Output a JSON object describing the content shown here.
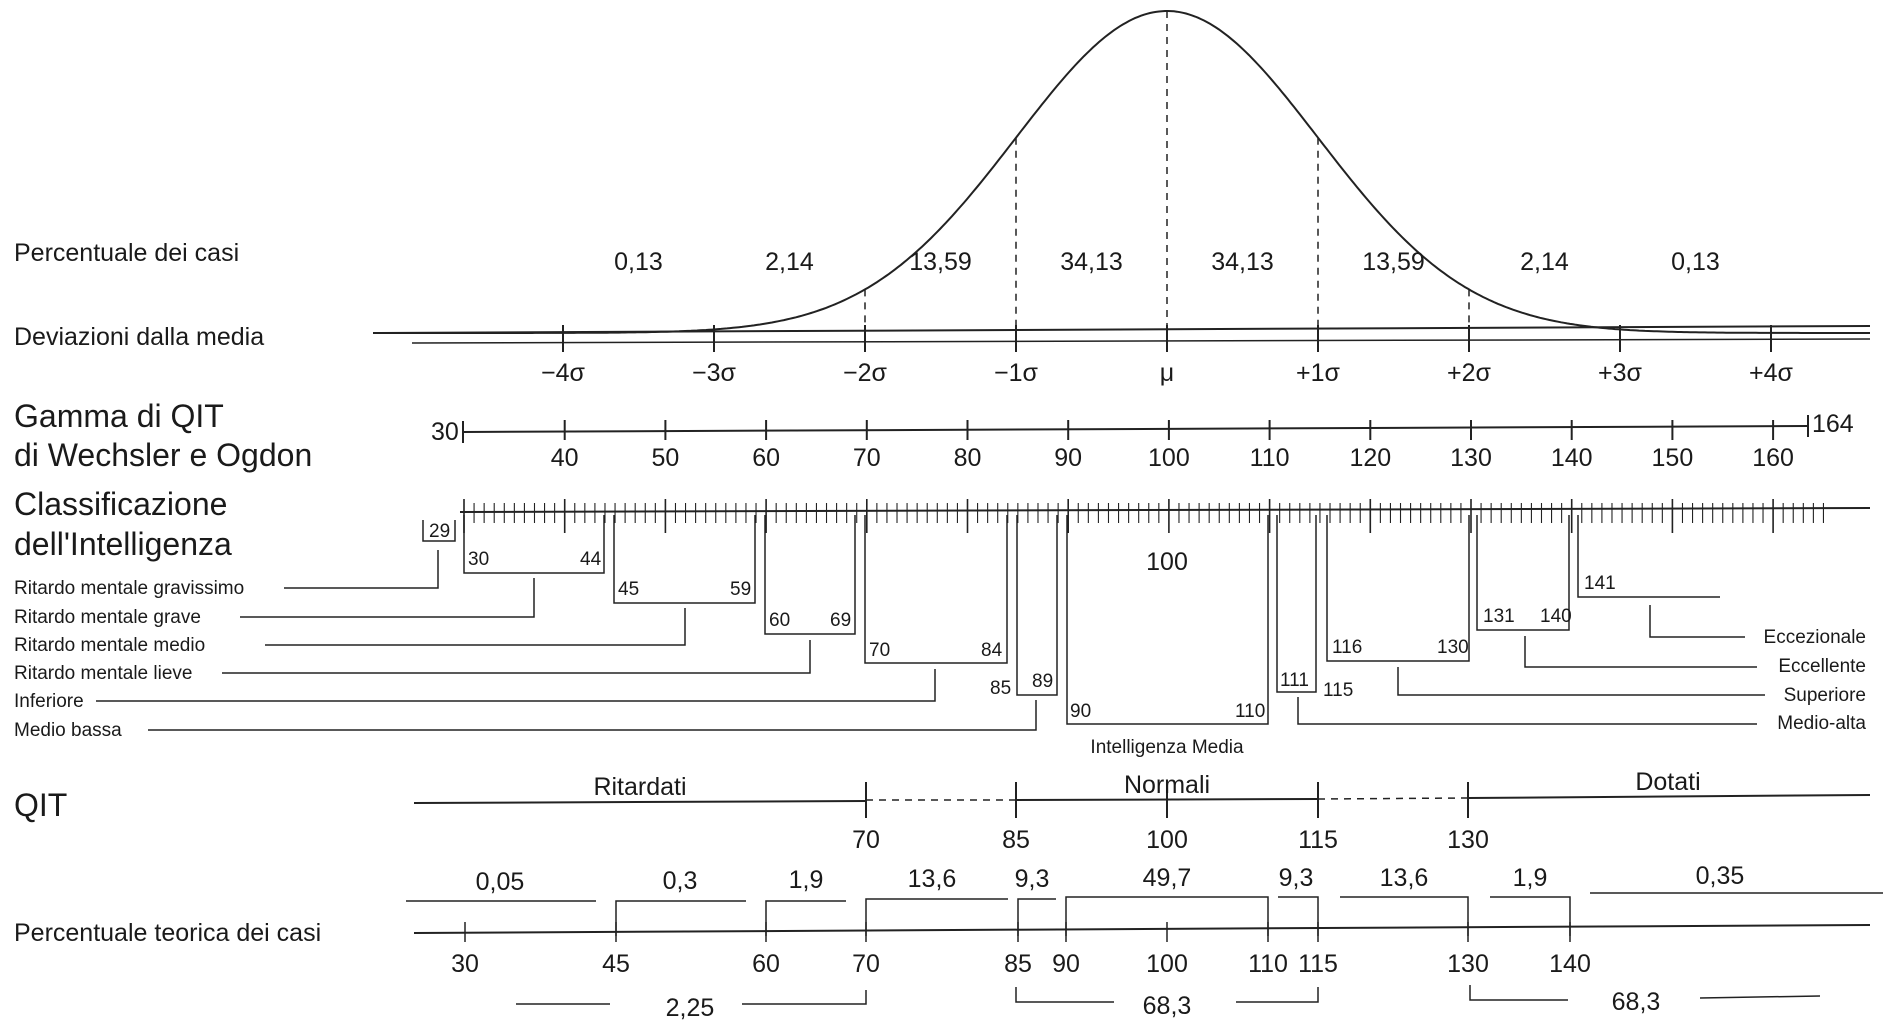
{
  "row_labels": {
    "percentuale_casi": "Percentuale dei casi",
    "deviazioni": "Deviazioni dalla media",
    "gamma_line1": "Gamma di QIT",
    "gamma_line2": "di Wechsler e Ogdon",
    "classificazione_line1": "Classificazione",
    "classificazione_line2": "dell'Intelligenza",
    "qit": "QIT",
    "percentuale_teorica": "Percentuale teorica dei casi"
  },
  "curve_percentages": [
    "0,13",
    "2,14",
    "13,59",
    "34,13",
    "34,13",
    "13,59",
    "2,14",
    "0,13"
  ],
  "sigma_labels": [
    "−4σ",
    "−3σ",
    "−2σ",
    "−1σ",
    "μ",
    "+1σ",
    "+2σ",
    "+3σ",
    "+4σ"
  ],
  "iq_scale": {
    "min_label": "30",
    "max_label": "164",
    "ticks": [
      "40",
      "50",
      "60",
      "70",
      "80",
      "90",
      "100",
      "110",
      "120",
      "130",
      "140",
      "150",
      "160"
    ]
  },
  "classes_left": [
    "Ritardo mentale gravissimo",
    "Ritardo mentale grave",
    "Ritardo mentale medio",
    "Ritardo mentale lieve",
    "Inferiore",
    "Medio bassa"
  ],
  "classes_right": [
    "Eccezionale",
    "Eccellente",
    "Superiore",
    "Medio-alta"
  ],
  "class_ranges": {
    "gravissimo": "29",
    "grave": [
      "30",
      "44"
    ],
    "medio": [
      "45",
      "59"
    ],
    "lieve": [
      "60",
      "69"
    ],
    "inferiore": [
      "70",
      "84"
    ],
    "medio_bassa": [
      "85",
      "89"
    ],
    "media": [
      "90",
      "110"
    ],
    "media_center": "100",
    "media_label": "Intelligenza Media",
    "medio_alta": [
      "111",
      "115"
    ],
    "superiore": [
      "116",
      "130"
    ],
    "eccellente": [
      "131",
      "140"
    ],
    "eccezionale": "141"
  },
  "qit_groups": [
    "Ritardati",
    "Normali",
    "Dotati"
  ],
  "qit_ticks": [
    "70",
    "85",
    "100",
    "115",
    "130"
  ],
  "theoretical_percentages": [
    "0,05",
    "0,3",
    "1,9",
    "13,6",
    "9,3",
    "49,7",
    "9,3",
    "13,6",
    "1,9",
    "0,35"
  ],
  "theoretical_ticks": [
    "30",
    "45",
    "60",
    "70",
    "85",
    "90",
    "100",
    "110",
    "115",
    "130",
    "140"
  ],
  "bottom_totals": [
    "2,25",
    "68,3",
    "68,3"
  ]
}
